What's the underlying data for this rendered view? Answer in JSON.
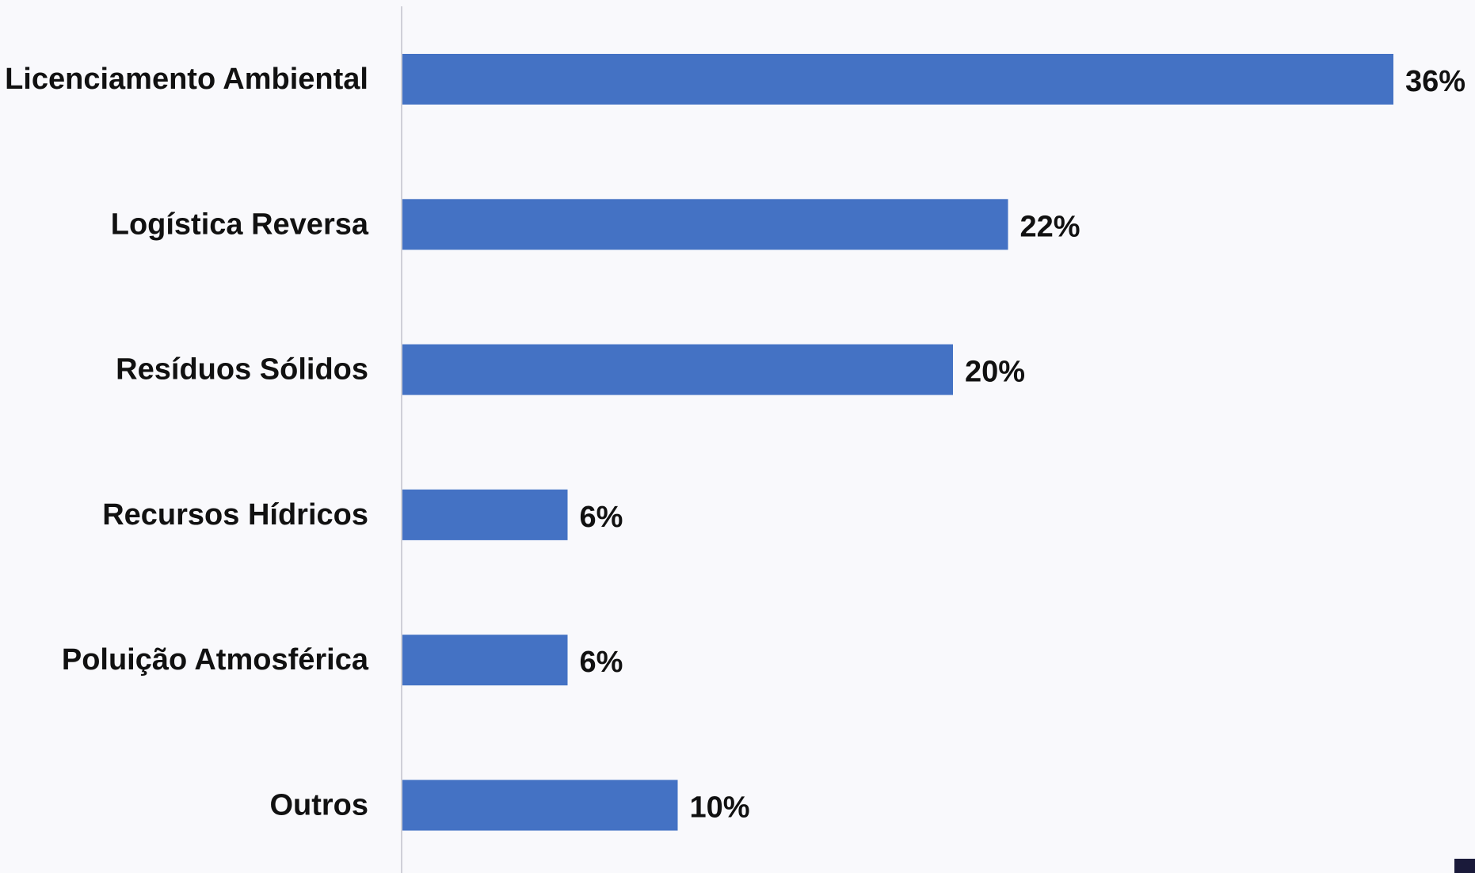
{
  "chart_data": {
    "type": "bar",
    "orientation": "horizontal",
    "title": "",
    "xlabel": "",
    "ylabel": "",
    "categories": [
      "Licenciamento Ambiental",
      "Logística Reversa",
      "Resíduos Sólidos",
      "Recursos Hídricos",
      "Poluição Atmosférica",
      "Outros"
    ],
    "values": [
      36,
      22,
      20,
      6,
      6,
      10
    ],
    "value_labels": [
      "36%",
      "22%",
      "20%",
      "6%",
      "6%",
      "10%"
    ],
    "unit": "%",
    "xlim": [
      0,
      36
    ],
    "grid": false,
    "legend": "none",
    "bar_color": "#4472c4",
    "axis_color": "#d0d0d8",
    "background_color": "#f9f9fc"
  }
}
